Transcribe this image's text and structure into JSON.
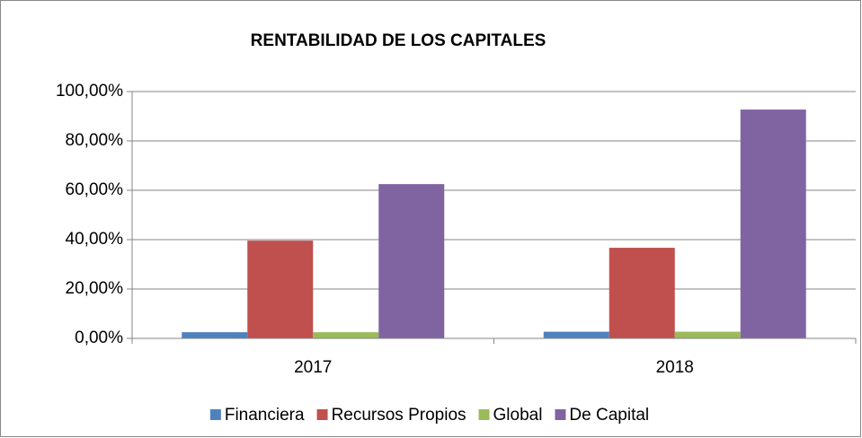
{
  "chart_data": {
    "type": "bar",
    "title": "RENTABILIDAD DE LOS CAPITALES",
    "categories": [
      "2017",
      "2018"
    ],
    "series": [
      {
        "name": "Financiera",
        "color": "#4f81bd",
        "values": [
          2.5,
          2.7
        ]
      },
      {
        "name": "Recursos Propios",
        "color": "#c0504d",
        "values": [
          39.6,
          36.7
        ]
      },
      {
        "name": "Global",
        "color": "#9bbb59",
        "values": [
          2.5,
          2.7
        ]
      },
      {
        "name": "De Capital",
        "color": "#8064a2",
        "values": [
          62.5,
          92.7
        ]
      }
    ],
    "ylim": [
      0,
      100
    ],
    "yticks": [
      {
        "value": 0,
        "label": "0,00%"
      },
      {
        "value": 20,
        "label": "20,00%"
      },
      {
        "value": 40,
        "label": "40,00%"
      },
      {
        "value": 60,
        "label": "60,00%"
      },
      {
        "value": 80,
        "label": "80,00%"
      },
      {
        "value": 100,
        "label": "100,00%"
      }
    ],
    "grid": true,
    "legend": "bottom"
  }
}
